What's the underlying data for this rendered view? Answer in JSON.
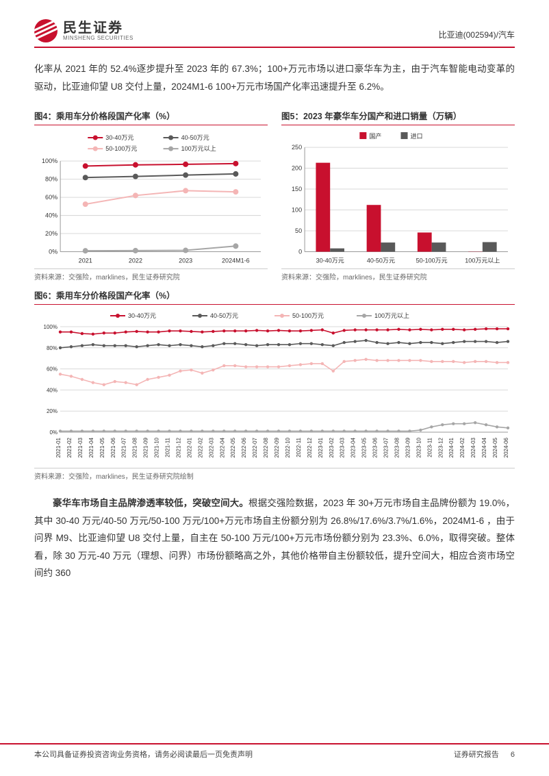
{
  "header": {
    "logo_cn": "民生证券",
    "logo_en": "MINSHENG SECURITIES",
    "right": "比亚迪(002594)/汽车"
  },
  "paragraph1": "化率从 2021 年的 52.4%逐步提升至 2023 年的 67.3%；100+万元市场以进口豪华车为主，由于汽车智能电动变革的驱动，比亚迪仰望 U8 交付上量，2024M1-6 100+万元市场国产化率迅速提升至 6.2%。",
  "chart4": {
    "title": "图4：乘用车分价格段国产化率（%）",
    "type": "line",
    "categories": [
      "2021",
      "2022",
      "2023",
      "2024M1-6"
    ],
    "series": [
      {
        "name": "30-40万元",
        "color": "#c8102e",
        "marker": "circle",
        "values": [
          94.5,
          95.8,
          96.4,
          97.2
        ]
      },
      {
        "name": "40-50万元",
        "color": "#595959",
        "marker": "circle",
        "values": [
          81.8,
          83.0,
          84.5,
          85.8
        ]
      },
      {
        "name": "50-100万元",
        "color": "#f4b5b5",
        "marker": "circle",
        "values": [
          52.4,
          62.0,
          67.3,
          66.0
        ]
      },
      {
        "name": "100万元以上",
        "color": "#a6a6a6",
        "marker": "circle",
        "values": [
          1.0,
          1.2,
          1.5,
          6.2
        ]
      }
    ],
    "ylim": [
      0,
      100
    ],
    "ytick_step": 20,
    "grid_color": "#d9d9d9",
    "bg": "#ffffff",
    "legend_fontsize": 9,
    "axis_fontsize": 9,
    "source": "资料来源：交强险，marklines，民生证券研究院"
  },
  "chart5": {
    "title": "图5：2023 年豪华车分国产和进口销量（万辆）",
    "type": "bar",
    "categories": [
      "30-40万元",
      "40-50万元",
      "50-100万元",
      "100万元以上"
    ],
    "series": [
      {
        "name": "国产",
        "color": "#c8102e",
        "values": [
          213,
          112,
          46,
          0.5
        ]
      },
      {
        "name": "进口",
        "color": "#595959",
        "values": [
          8,
          22,
          22,
          23
        ]
      }
    ],
    "ylim": [
      0,
      250
    ],
    "ytick_step": 50,
    "grid_color": "#d9d9d9",
    "bg": "#ffffff",
    "legend_fontsize": 9,
    "axis_fontsize": 9,
    "source": "资料来源：交强险，marklines，民生证券研究院"
  },
  "chart6": {
    "title": "图6：乘用车分价格段国产化率（%）",
    "type": "line",
    "categories": [
      "2021-01",
      "2021-02",
      "2021-03",
      "2021-04",
      "2021-05",
      "2021-06",
      "2021-07",
      "2021-08",
      "2021-09",
      "2021-10",
      "2021-11",
      "2021-12",
      "2022-01",
      "2022-02",
      "2022-03",
      "2022-04",
      "2022-05",
      "2022-06",
      "2022-07",
      "2022-08",
      "2022-09",
      "2022-10",
      "2022-11",
      "2022-12",
      "2023-01",
      "2023-02",
      "2023-03",
      "2023-04",
      "2023-05",
      "2023-06",
      "2023-07",
      "2023-08",
      "2023-09",
      "2023-10",
      "2023-11",
      "2023-12",
      "2024-01",
      "2024-02",
      "2024-03",
      "2024-04",
      "2024-05",
      "2024-06"
    ],
    "series": [
      {
        "name": "30-40万元",
        "color": "#c8102e",
        "values": [
          95,
          95,
          93.5,
          93,
          94,
          94,
          95,
          95.5,
          95,
          95,
          96,
          96,
          95.5,
          95,
          95.5,
          96,
          96,
          96,
          96.5,
          96,
          96.5,
          96,
          96,
          96.5,
          97,
          94,
          96.5,
          97,
          97,
          97,
          97,
          97.5,
          97,
          97.5,
          97,
          97.5,
          97.5,
          97,
          97.5,
          98,
          98,
          98
        ]
      },
      {
        "name": "40-50万元",
        "color": "#595959",
        "values": [
          80,
          81,
          82,
          83,
          82,
          82,
          82,
          81,
          82,
          83,
          82,
          83,
          82,
          81,
          82,
          84,
          84,
          83,
          82,
          83,
          83,
          83,
          84,
          84,
          83,
          82,
          85,
          86,
          87,
          85,
          84,
          85,
          84,
          85,
          85,
          84,
          85,
          86,
          86,
          86,
          85,
          86
        ]
      },
      {
        "name": "50-100万元",
        "color": "#f4b5b5",
        "values": [
          55,
          53,
          50,
          47,
          45,
          48,
          47,
          45,
          50,
          52,
          54,
          58,
          59,
          56,
          59,
          63,
          63,
          62,
          62,
          62,
          62,
          63,
          64,
          65,
          65,
          58,
          67,
          68,
          69,
          68,
          68,
          68,
          68,
          68,
          67,
          67,
          67,
          66,
          67,
          67,
          66,
          66
        ]
      },
      {
        "name": "100万元以上",
        "color": "#a6a6a6",
        "values": [
          1,
          1,
          1,
          1,
          1,
          1,
          1,
          1,
          1,
          1,
          1,
          1,
          1,
          1,
          1,
          1,
          1,
          1,
          1,
          1,
          1,
          1,
          1,
          1,
          1,
          1,
          1,
          1,
          1,
          1,
          1,
          1,
          1,
          2,
          5,
          7,
          8,
          8,
          9,
          7,
          5,
          4
        ]
      }
    ],
    "ylim": [
      0,
      100
    ],
    "ytick_step": 20,
    "grid_color": "#d9d9d9",
    "bg": "#ffffff",
    "legend_fontsize": 9,
    "axis_fontsize": 8,
    "source": "资料来源：交强险，marklines，民生证券研究院绘制"
  },
  "paragraph2_bold": "豪华车市场自主品牌渗透率较低，突破空间大。",
  "paragraph2_rest": "根据交强险数据，2023 年 30+万元市场自主品牌份额为 19.0%，其中 30-40 万元/40-50 万元/50-100 万元/100+万元市场自主份额分别为 26.8%/17.6%/3.7%/1.6%，2024M1-6 ，由于问界 M9、比亚迪仰望 U8 交付上量，自主在 50-100 万元/100+万元市场份额分别为 23.3%、6.0%，取得突破。整体看，除 30 万元-40 万元（理想、问界）市场份额略高之外，其他价格带自主份额较低，提升空间大，相应合资市场空间约 360",
  "footer": {
    "left": "本公司具备证券投资咨询业务资格，请务必阅读最后一页免责声明",
    "right": "证券研究报告",
    "page": "6"
  }
}
